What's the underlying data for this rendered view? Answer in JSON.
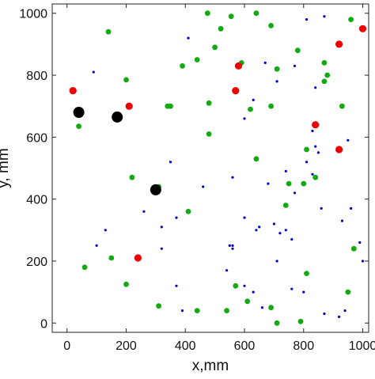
{
  "chart_data": {
    "type": "scatter",
    "title": "",
    "xlabel": "x,mm",
    "ylabel": "y, mm",
    "xlim": [
      -50,
      1020
    ],
    "ylim": [
      -30,
      1030
    ],
    "xticks": [
      0,
      200,
      400,
      600,
      800,
      1000
    ],
    "yticks": [
      0,
      200,
      400,
      600,
      800,
      1000
    ],
    "grid": false,
    "legend": "none",
    "series": [
      {
        "color": "#0000cc",
        "marker": "dot",
        "points": [
          [
            480,
            1000
          ],
          [
            410,
            920
          ],
          [
            90,
            810
          ],
          [
            870,
            990
          ],
          [
            810,
            980
          ],
          [
            670,
            840
          ],
          [
            770,
            830
          ],
          [
            710,
            780
          ],
          [
            840,
            760
          ],
          [
            930,
            700
          ],
          [
            600,
            660
          ],
          [
            830,
            620
          ],
          [
            950,
            590
          ],
          [
            840,
            570
          ],
          [
            630,
            720
          ],
          [
            620,
            690
          ],
          [
            350,
            520
          ],
          [
            460,
            440
          ],
          [
            680,
            450
          ],
          [
            770,
            420
          ],
          [
            740,
            490
          ],
          [
            810,
            520
          ],
          [
            850,
            550
          ],
          [
            830,
            480
          ],
          [
            560,
            470
          ],
          [
            260,
            360
          ],
          [
            370,
            340
          ],
          [
            320,
            310
          ],
          [
            600,
            340
          ],
          [
            650,
            310
          ],
          [
            700,
            320
          ],
          [
            720,
            290
          ],
          [
            740,
            300
          ],
          [
            760,
            270
          ],
          [
            640,
            300
          ],
          [
            930,
            330
          ],
          [
            860,
            370
          ],
          [
            990,
            260
          ],
          [
            1000,
            200
          ],
          [
            960,
            370
          ],
          [
            550,
            250
          ],
          [
            560,
            250
          ],
          [
            560,
            240
          ],
          [
            130,
            300
          ],
          [
            100,
            250
          ],
          [
            320,
            240
          ],
          [
            540,
            170
          ],
          [
            600,
            120
          ],
          [
            630,
            100
          ],
          [
            660,
            50
          ],
          [
            390,
            40
          ],
          [
            800,
            100
          ],
          [
            870,
            30
          ],
          [
            920,
            20
          ],
          [
            940,
            40
          ],
          [
            370,
            120
          ],
          [
            760,
            110
          ],
          [
            710,
            200
          ]
        ]
      },
      {
        "color": "#11aa11",
        "marker": "medium",
        "points": [
          [
            140,
            940
          ],
          [
            475,
            1000
          ],
          [
            555,
            990
          ],
          [
            640,
            1000
          ],
          [
            690,
            960
          ],
          [
            520,
            950
          ],
          [
            960,
            980
          ],
          [
            200,
            785
          ],
          [
            390,
            830
          ],
          [
            440,
            850
          ],
          [
            500,
            890
          ],
          [
            590,
            840
          ],
          [
            710,
            820
          ],
          [
            780,
            880
          ],
          [
            870,
            840
          ],
          [
            880,
            800
          ],
          [
            340,
            700
          ],
          [
            350,
            700
          ],
          [
            480,
            710
          ],
          [
            620,
            690
          ],
          [
            690,
            700
          ],
          [
            870,
            780
          ],
          [
            930,
            700
          ],
          [
            750,
            450
          ],
          [
            810,
            560
          ],
          [
            800,
            450
          ],
          [
            840,
            470
          ],
          [
            740,
            380
          ],
          [
            640,
            530
          ],
          [
            410,
            360
          ],
          [
            220,
            470
          ],
          [
            310,
            440
          ],
          [
            480,
            610
          ],
          [
            40,
            635
          ],
          [
            60,
            180
          ],
          [
            150,
            210
          ],
          [
            200,
            125
          ],
          [
            310,
            55
          ],
          [
            440,
            40
          ],
          [
            540,
            40
          ],
          [
            570,
            120
          ],
          [
            610,
            70
          ],
          [
            690,
            50
          ],
          [
            710,
            0
          ],
          [
            790,
            5
          ],
          [
            810,
            160
          ],
          [
            970,
            240
          ],
          [
            950,
            100
          ]
        ]
      },
      {
        "color": "#ee0000",
        "marker": "large",
        "points": [
          [
            20,
            750
          ],
          [
            210,
            700
          ],
          [
            580,
            830
          ],
          [
            570,
            750
          ],
          [
            920,
            900
          ],
          [
            1000,
            950
          ],
          [
            840,
            640
          ],
          [
            920,
            560
          ],
          [
            240,
            210
          ]
        ]
      },
      {
        "color": "#000000",
        "marker": "xlarge",
        "points": [
          [
            40,
            680
          ],
          [
            170,
            665
          ],
          [
            300,
            430
          ]
        ]
      }
    ]
  }
}
